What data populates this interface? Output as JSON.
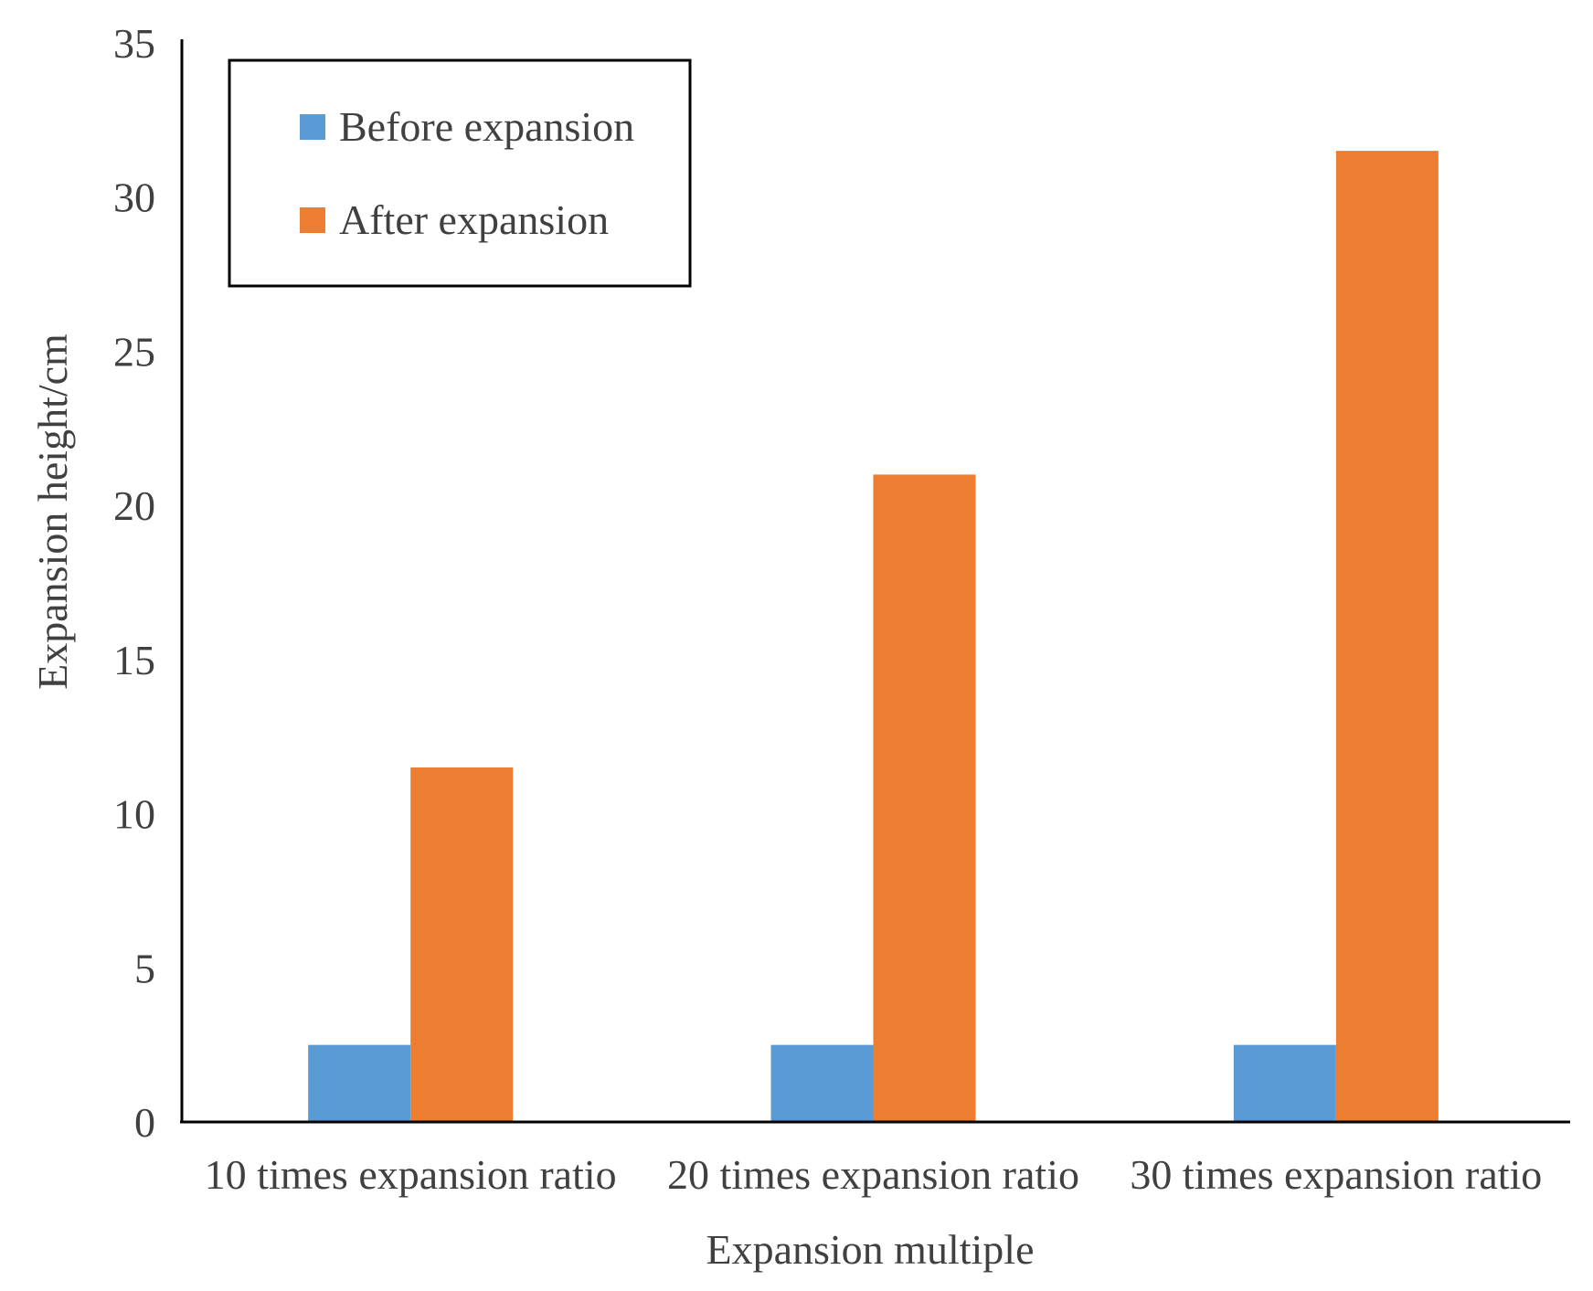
{
  "chart_data": {
    "type": "bar",
    "title": "",
    "xlabel": "Expansion multiple",
    "ylabel": "Expansion height/cm",
    "categories": [
      "10 times expansion ratio",
      "20 times expansion ratio",
      "30 times expansion ratio"
    ],
    "series": [
      {
        "name": "Before expansion",
        "values": [
          2.5,
          2.5,
          2.5
        ],
        "color": "#5B9BD5"
      },
      {
        "name": "After expansion",
        "values": [
          11.5,
          21,
          31.5
        ],
        "color": "#ED7D31"
      }
    ],
    "ylim": [
      0,
      35
    ],
    "yticks": [
      "0",
      "5",
      "10",
      "15",
      "20",
      "25",
      "30",
      "35"
    ],
    "grid": false,
    "legend_position": "top-left"
  }
}
